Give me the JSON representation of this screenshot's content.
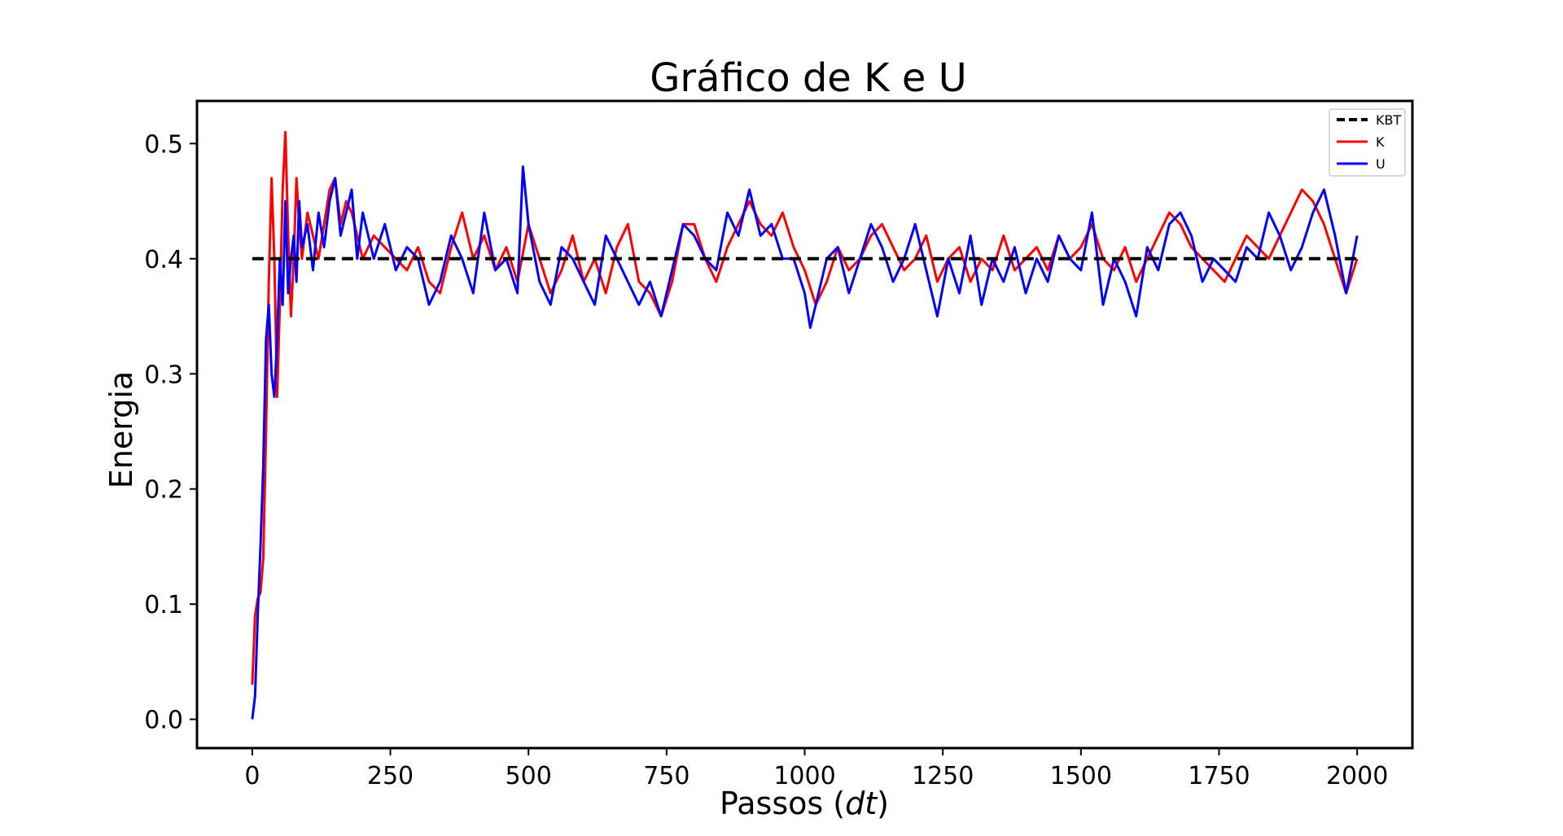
{
  "chart_data": {
    "type": "line",
    "title": "Gráfico de K e U",
    "xlabel_main": "Passos (",
    "xlabel_italic": "dt",
    "xlabel_close": ")",
    "ylabel": "Energia",
    "xlim": [
      -100,
      2100
    ],
    "ylim": [
      -0.025,
      0.537
    ],
    "xticks": [
      0,
      250,
      500,
      750,
      1000,
      1250,
      1500,
      1750,
      2000
    ],
    "xtick_labels": [
      "0",
      "250",
      "500",
      "750",
      "1000",
      "1250",
      "1500",
      "1750",
      "2000"
    ],
    "yticks": [
      0.0,
      0.1,
      0.2,
      0.3,
      0.4,
      0.5
    ],
    "ytick_labels": [
      "0.0",
      "0.1",
      "0.2",
      "0.3",
      "0.4",
      "0.5"
    ],
    "grid": false,
    "legend_position": "top-right",
    "series": [
      {
        "name": "KBT",
        "style": "dashed",
        "color": "#000000",
        "x": [
          0,
          2000
        ],
        "y": [
          0.4,
          0.4
        ]
      },
      {
        "name": "K",
        "style": "solid",
        "color": "#ff0000",
        "x": [
          0,
          5,
          10,
          15,
          20,
          25,
          30,
          35,
          40,
          45,
          50,
          55,
          60,
          65,
          70,
          75,
          80,
          85,
          90,
          100,
          110,
          120,
          130,
          140,
          150,
          160,
          170,
          180,
          190,
          200,
          220,
          240,
          260,
          280,
          300,
          320,
          340,
          360,
          380,
          400,
          420,
          440,
          460,
          480,
          500,
          520,
          540,
          560,
          580,
          600,
          620,
          640,
          660,
          680,
          700,
          720,
          740,
          760,
          780,
          800,
          820,
          840,
          860,
          880,
          900,
          920,
          940,
          960,
          980,
          1000,
          1020,
          1040,
          1060,
          1080,
          1100,
          1120,
          1140,
          1160,
          1180,
          1200,
          1220,
          1240,
          1260,
          1280,
          1300,
          1320,
          1340,
          1360,
          1380,
          1400,
          1420,
          1440,
          1460,
          1480,
          1500,
          1520,
          1540,
          1560,
          1580,
          1600,
          1620,
          1640,
          1660,
          1680,
          1700,
          1720,
          1740,
          1760,
          1780,
          1800,
          1820,
          1840,
          1860,
          1880,
          1900,
          1920,
          1940,
          1960,
          1980,
          2000
        ],
        "y": [
          0.03,
          0.09,
          0.105,
          0.11,
          0.14,
          0.25,
          0.38,
          0.47,
          0.4,
          0.28,
          0.36,
          0.46,
          0.51,
          0.42,
          0.35,
          0.4,
          0.47,
          0.43,
          0.4,
          0.44,
          0.42,
          0.4,
          0.43,
          0.46,
          0.47,
          0.43,
          0.45,
          0.44,
          0.42,
          0.4,
          0.42,
          0.41,
          0.4,
          0.39,
          0.41,
          0.38,
          0.37,
          0.41,
          0.44,
          0.4,
          0.42,
          0.39,
          0.41,
          0.38,
          0.43,
          0.4,
          0.37,
          0.39,
          0.42,
          0.38,
          0.4,
          0.37,
          0.41,
          0.43,
          0.38,
          0.37,
          0.35,
          0.38,
          0.43,
          0.43,
          0.4,
          0.38,
          0.41,
          0.43,
          0.45,
          0.43,
          0.42,
          0.44,
          0.41,
          0.39,
          0.36,
          0.38,
          0.41,
          0.39,
          0.4,
          0.42,
          0.43,
          0.41,
          0.39,
          0.4,
          0.42,
          0.38,
          0.4,
          0.41,
          0.38,
          0.4,
          0.39,
          0.42,
          0.39,
          0.4,
          0.41,
          0.39,
          0.42,
          0.4,
          0.41,
          0.43,
          0.4,
          0.39,
          0.41,
          0.38,
          0.4,
          0.42,
          0.44,
          0.43,
          0.41,
          0.4,
          0.39,
          0.38,
          0.4,
          0.42,
          0.41,
          0.4,
          0.42,
          0.44,
          0.46,
          0.45,
          0.43,
          0.4,
          0.37,
          0.4
        ]
      },
      {
        "name": "U",
        "style": "solid",
        "color": "#0000ff",
        "x": [
          0,
          5,
          10,
          15,
          20,
          25,
          30,
          35,
          40,
          45,
          50,
          55,
          60,
          65,
          70,
          75,
          80,
          85,
          90,
          100,
          110,
          120,
          130,
          140,
          150,
          160,
          170,
          180,
          190,
          200,
          220,
          240,
          260,
          280,
          300,
          320,
          340,
          360,
          380,
          400,
          420,
          440,
          460,
          480,
          490,
          500,
          520,
          540,
          560,
          580,
          600,
          620,
          640,
          660,
          680,
          700,
          720,
          740,
          760,
          780,
          800,
          820,
          840,
          860,
          880,
          900,
          920,
          940,
          960,
          980,
          1000,
          1010,
          1020,
          1040,
          1060,
          1080,
          1100,
          1120,
          1140,
          1160,
          1180,
          1200,
          1220,
          1240,
          1260,
          1280,
          1300,
          1320,
          1340,
          1360,
          1380,
          1400,
          1420,
          1440,
          1460,
          1480,
          1500,
          1520,
          1540,
          1560,
          1580,
          1600,
          1620,
          1640,
          1660,
          1680,
          1700,
          1720,
          1740,
          1760,
          1780,
          1800,
          1820,
          1840,
          1860,
          1880,
          1900,
          1920,
          1940,
          1960,
          1980,
          2000
        ],
        "y": [
          0.0,
          0.02,
          0.09,
          0.15,
          0.22,
          0.33,
          0.36,
          0.3,
          0.28,
          0.33,
          0.4,
          0.36,
          0.45,
          0.37,
          0.4,
          0.42,
          0.38,
          0.45,
          0.41,
          0.43,
          0.39,
          0.44,
          0.41,
          0.45,
          0.47,
          0.42,
          0.44,
          0.46,
          0.4,
          0.44,
          0.4,
          0.43,
          0.39,
          0.41,
          0.4,
          0.36,
          0.38,
          0.42,
          0.4,
          0.37,
          0.44,
          0.39,
          0.4,
          0.37,
          0.48,
          0.43,
          0.38,
          0.36,
          0.41,
          0.4,
          0.38,
          0.36,
          0.42,
          0.4,
          0.38,
          0.36,
          0.38,
          0.35,
          0.39,
          0.43,
          0.42,
          0.4,
          0.39,
          0.44,
          0.42,
          0.46,
          0.42,
          0.43,
          0.4,
          0.4,
          0.37,
          0.34,
          0.36,
          0.4,
          0.41,
          0.37,
          0.4,
          0.43,
          0.41,
          0.38,
          0.4,
          0.43,
          0.39,
          0.35,
          0.4,
          0.37,
          0.42,
          0.36,
          0.4,
          0.38,
          0.41,
          0.37,
          0.4,
          0.38,
          0.42,
          0.4,
          0.39,
          0.44,
          0.36,
          0.4,
          0.38,
          0.35,
          0.41,
          0.39,
          0.43,
          0.44,
          0.42,
          0.38,
          0.4,
          0.39,
          0.38,
          0.41,
          0.4,
          0.44,
          0.42,
          0.39,
          0.41,
          0.44,
          0.46,
          0.42,
          0.37,
          0.42
        ]
      }
    ]
  }
}
